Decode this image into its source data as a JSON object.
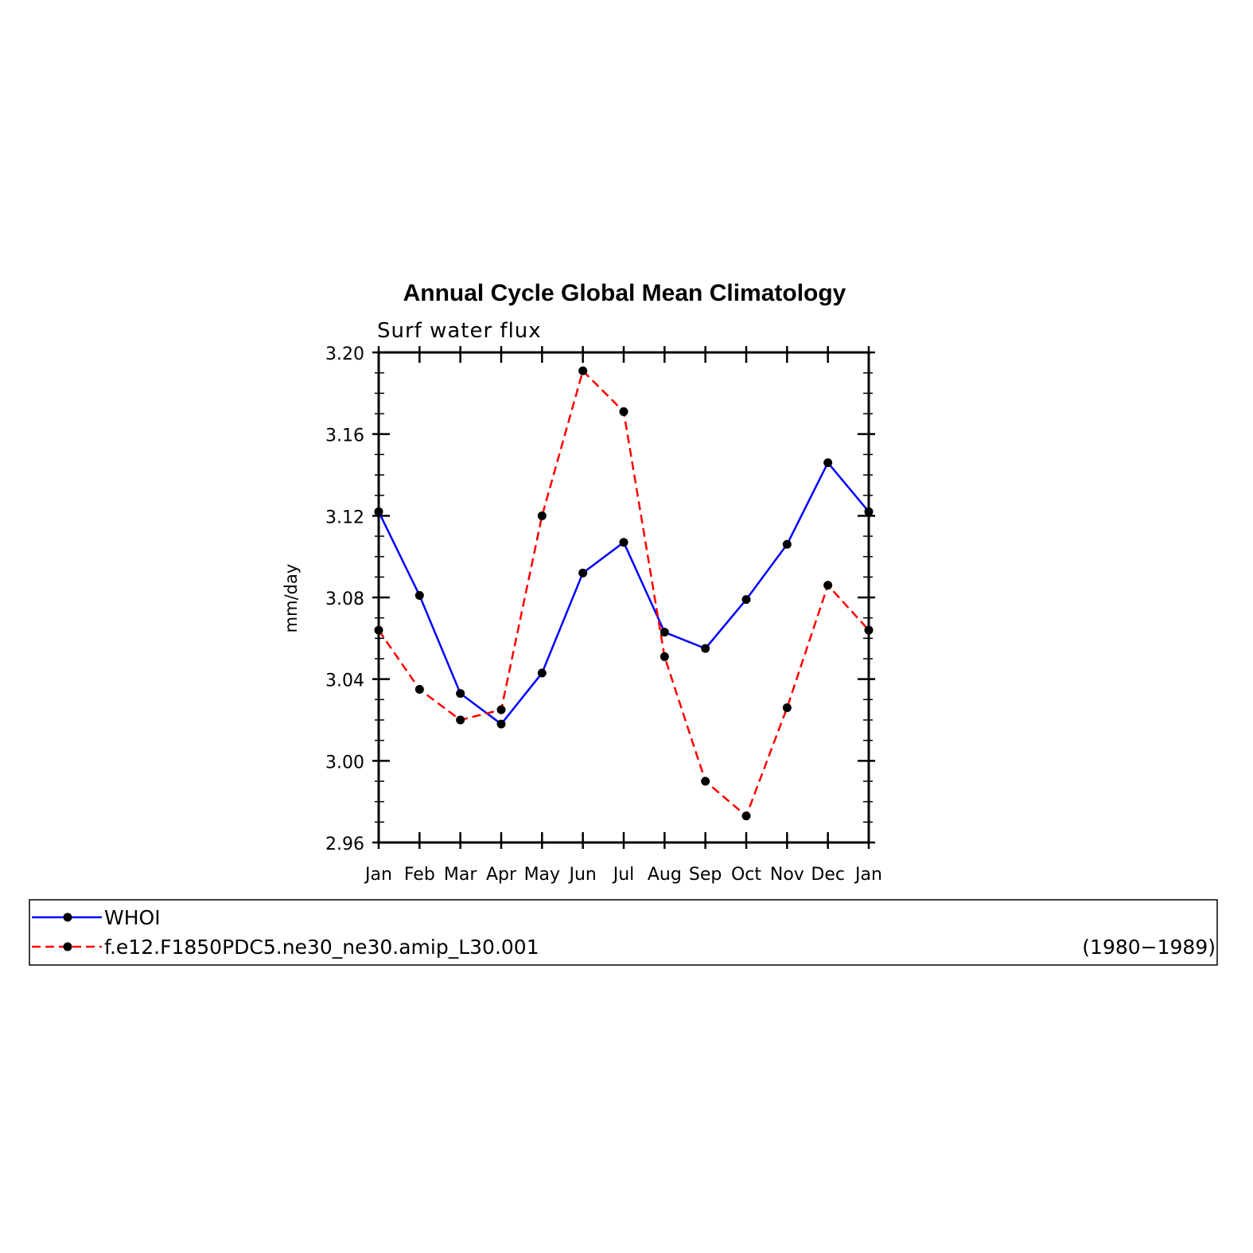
{
  "chart_data": {
    "type": "line",
    "title": "Annual Cycle Global Mean Climatology",
    "subtitle": "Surf water flux",
    "xlabel": "",
    "ylabel": "mm/day",
    "categories": [
      "Jan",
      "Feb",
      "Mar",
      "Apr",
      "May",
      "Jun",
      "Jul",
      "Aug",
      "Sep",
      "Oct",
      "Nov",
      "Dec",
      "Jan"
    ],
    "ylim": [
      2.96,
      3.2
    ],
    "yticks": [
      "3.20",
      "3.16",
      "3.12",
      "3.08",
      "3.04",
      "3.00",
      "2.96"
    ],
    "series": [
      {
        "name": "WHOI",
        "color": "#0000ff",
        "dashed": false,
        "values": [
          3.122,
          3.081,
          3.033,
          3.018,
          3.043,
          3.092,
          3.107,
          3.063,
          3.055,
          3.079,
          3.106,
          3.146,
          3.122
        ]
      },
      {
        "name": "f.e12.F1850PDC5.ne30_ne30.amip_L30.001",
        "color": "#ff0000",
        "dashed": true,
        "values": [
          3.064,
          3.035,
          3.02,
          3.025,
          3.12,
          3.191,
          3.171,
          3.051,
          2.99,
          2.973,
          3.026,
          3.086,
          3.064
        ]
      }
    ],
    "legend_note": "(1980−1989)",
    "grid": false,
    "legend_position": "bottom"
  }
}
